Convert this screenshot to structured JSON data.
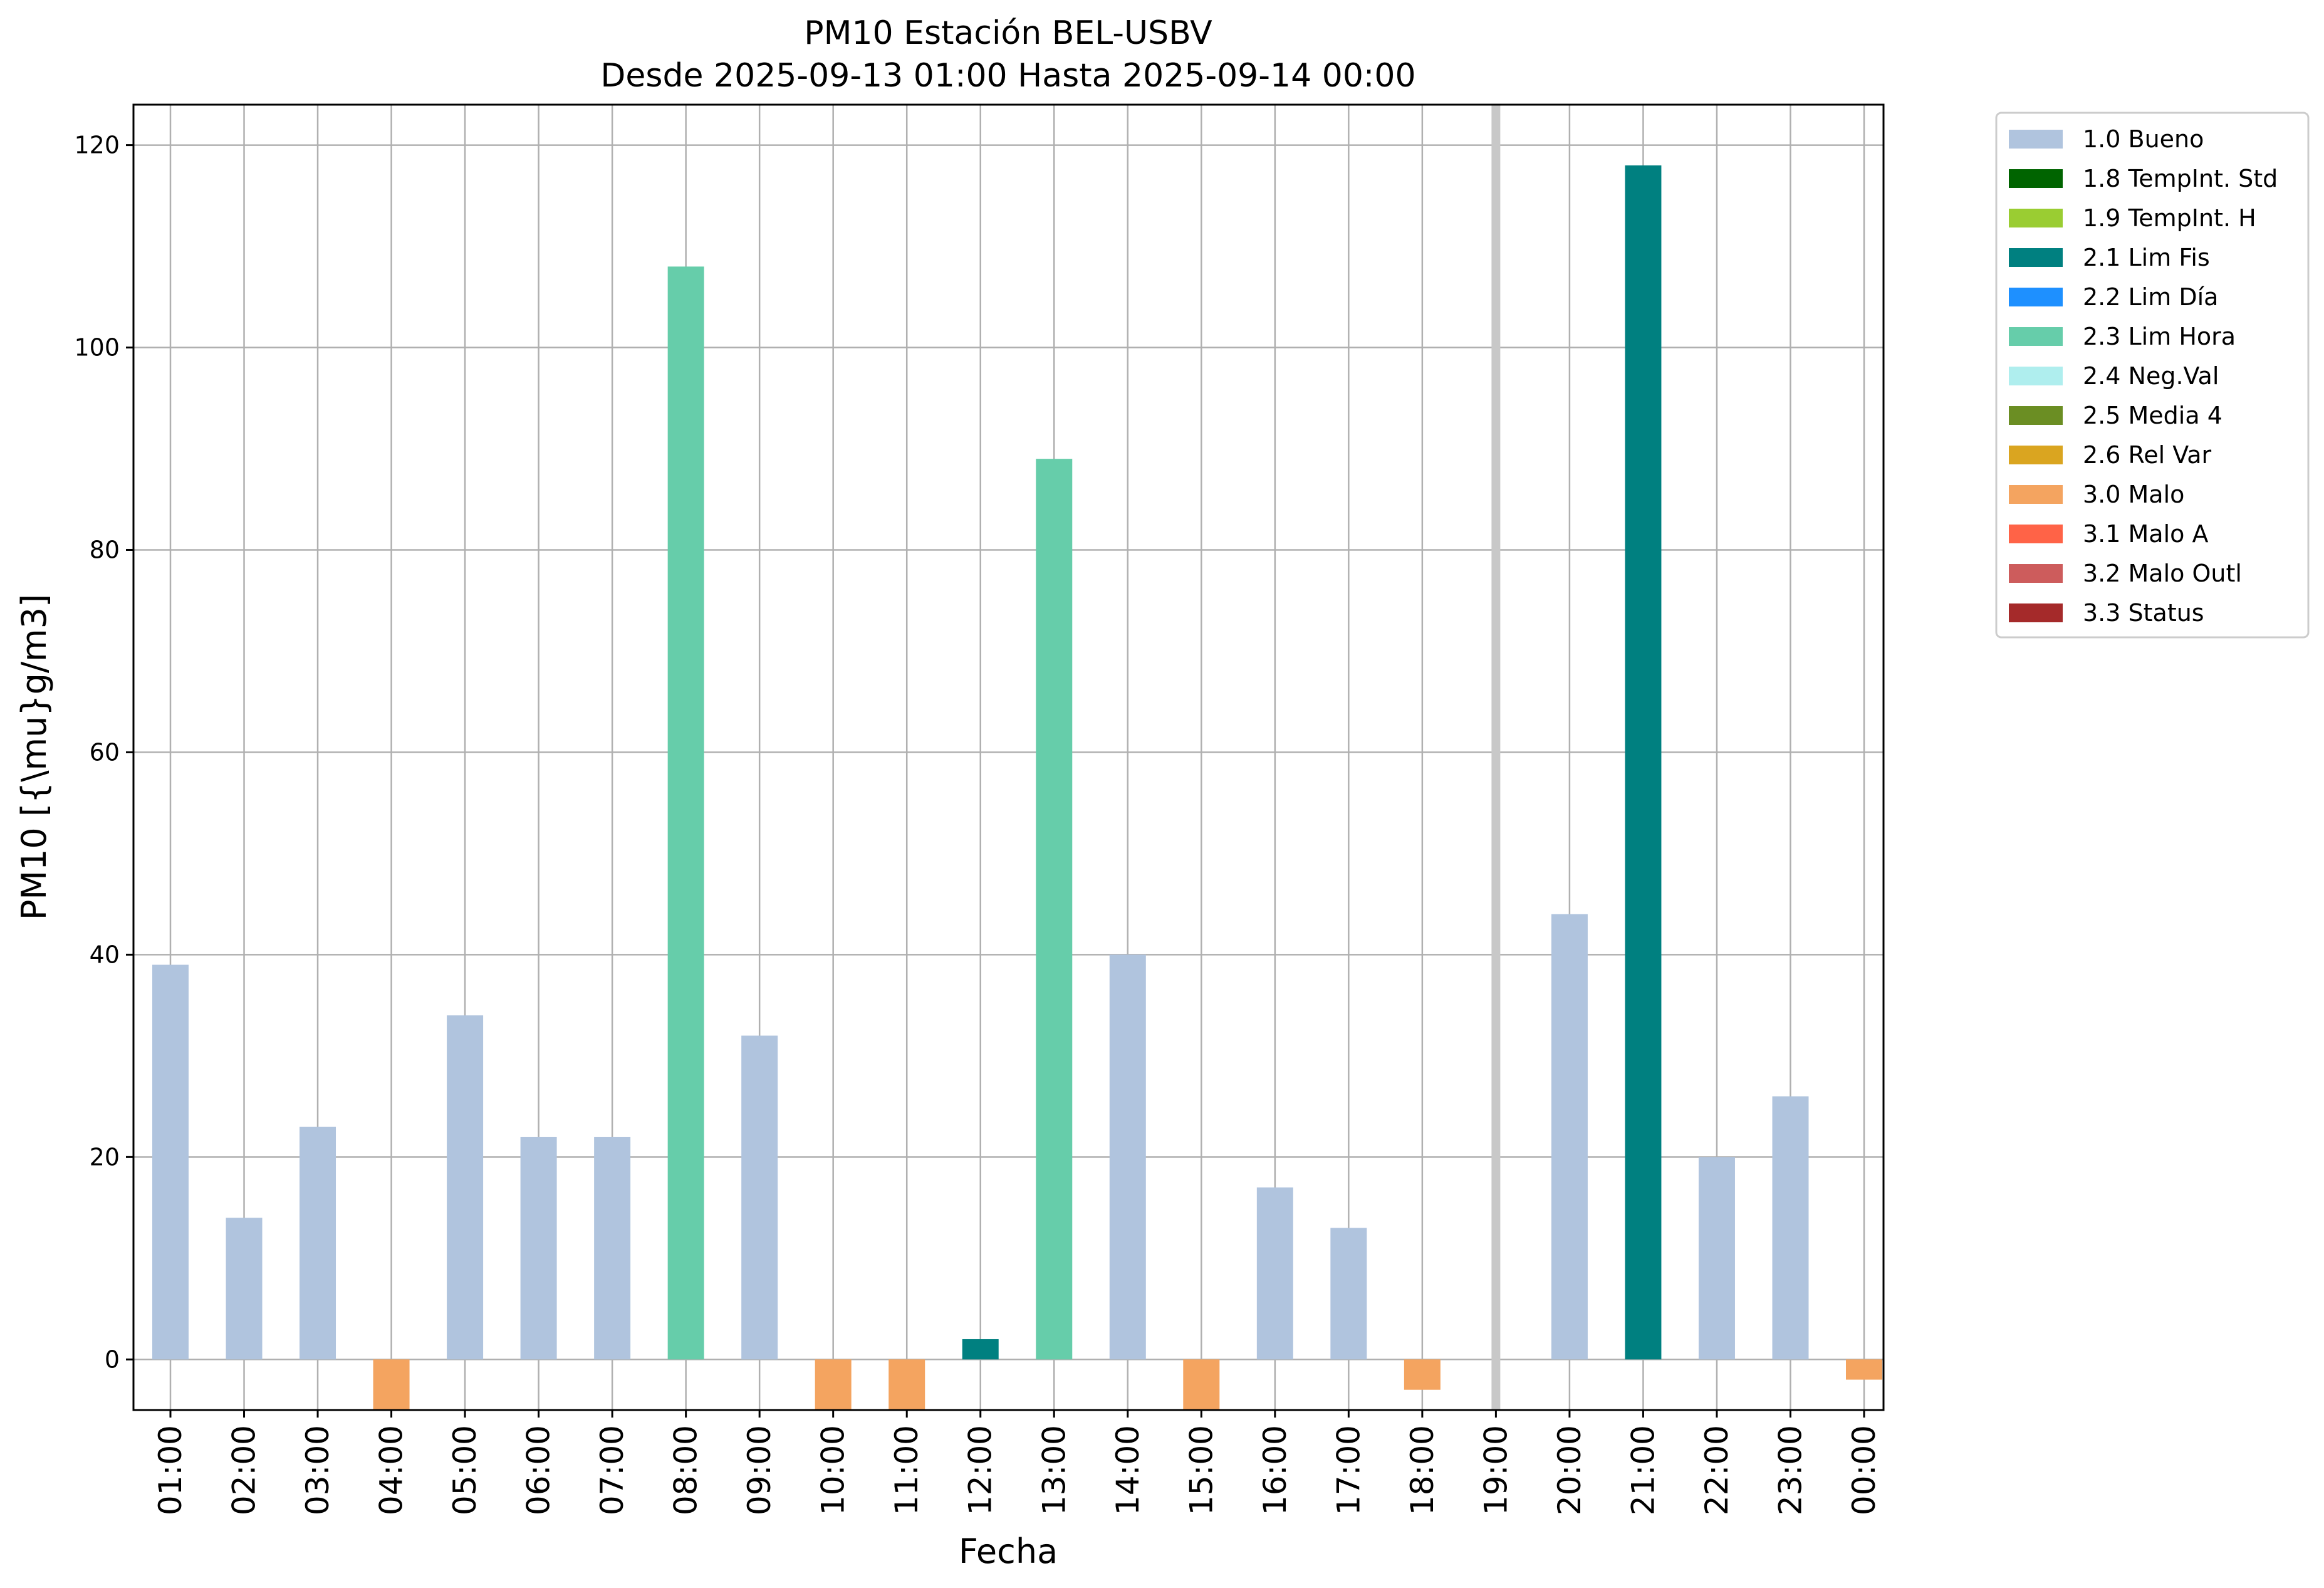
{
  "chart_data": {
    "type": "bar",
    "title": "PM10 Estación BEL-USBV",
    "subtitle": "Desde 2025-09-13 01:00 Hasta 2025-09-14 00:00",
    "xlabel": "Fecha",
    "ylabel": "PM10 [{\\mu}g/m3]",
    "ylim": [
      -5,
      124
    ],
    "yticks": [
      0,
      20,
      40,
      60,
      80,
      100,
      120
    ],
    "grid": true,
    "legend_position": "outside-top-right",
    "categories": [
      "01:00",
      "02:00",
      "03:00",
      "04:00",
      "05:00",
      "06:00",
      "07:00",
      "08:00",
      "09:00",
      "10:00",
      "11:00",
      "12:00",
      "13:00",
      "14:00",
      "15:00",
      "16:00",
      "17:00",
      "18:00",
      "19:00",
      "20:00",
      "21:00",
      "22:00",
      "23:00",
      "00:00"
    ],
    "values": [
      39,
      14,
      23,
      -5,
      34,
      22,
      22,
      108,
      32,
      -5,
      -5,
      2,
      89,
      40,
      -5,
      17,
      13,
      -3,
      null,
      44,
      118,
      20,
      26,
      -2
    ],
    "flags": [
      "1.0 Bueno",
      "1.0 Bueno",
      "1.0 Bueno",
      "3.0 Malo",
      "1.0 Bueno",
      "1.0 Bueno",
      "1.0 Bueno",
      "2.3 Lim Hora",
      "1.0 Bueno",
      "3.0 Malo",
      "3.0 Malo",
      "2.1 Lim Fis",
      "2.3 Lim Hora",
      "1.0 Bueno",
      "3.0 Malo",
      "1.0 Bueno",
      "1.0 Bueno",
      "3.0 Malo",
      null,
      "1.0 Bueno",
      "2.1 Lim Fis",
      "1.0 Bueno",
      "1.0 Bueno",
      "3.0 Malo"
    ],
    "legend": [
      {
        "label": "1.0 Bueno",
        "color": "#B0C4DE"
      },
      {
        "label": "1.8 TempInt. Std",
        "color": "#006400"
      },
      {
        "label": "1.9 TempInt. H",
        "color": "#9ACD32"
      },
      {
        "label": "2.1 Lim Fis",
        "color": "#008080"
      },
      {
        "label": "2.2 Lim Día",
        "color": "#1E90FF"
      },
      {
        "label": "2.3 Lim Hora",
        "color": "#66CDAA"
      },
      {
        "label": "2.4 Neg.Val",
        "color": "#AFEEEE"
      },
      {
        "label": "2.5 Media 4",
        "color": "#6B8E23"
      },
      {
        "label": "2.6 Rel Var",
        "color": "#DAA520"
      },
      {
        "label": "3.0 Malo",
        "color": "#F4A460"
      },
      {
        "label": "3.1 Malo A",
        "color": "#FF6347"
      },
      {
        "label": "3.2 Malo Outl",
        "color": "#CD5C5C"
      },
      {
        "label": "3.3 Status",
        "color": "#A52A2A"
      }
    ],
    "marker_category": "19:00",
    "marker_color": "#C8C8C8"
  }
}
